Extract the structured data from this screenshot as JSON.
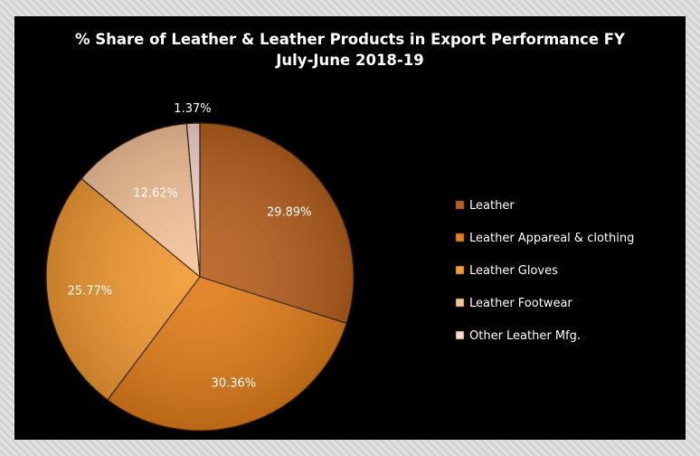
{
  "chart_data": {
    "type": "pie",
    "title_lines": [
      "% Share of Leather & Leather Products in Export Performance FY",
      "July-June 2018-19"
    ],
    "categories": [
      "Leather",
      "Leather Appareal & clothing",
      "Leather Gloves",
      "Leather Footwear",
      "Other Leather Mfg."
    ],
    "values": [
      29.89,
      30.36,
      25.77,
      12.62,
      1.37
    ],
    "labels": [
      "29.89%",
      "30.36%",
      "25.77%",
      "12.62%",
      "1.37%"
    ],
    "colors": [
      "#b8611f",
      "#e27e1a",
      "#f39a33",
      "#f6c49a",
      "#f4d8cf"
    ],
    "legend_position": "right"
  }
}
